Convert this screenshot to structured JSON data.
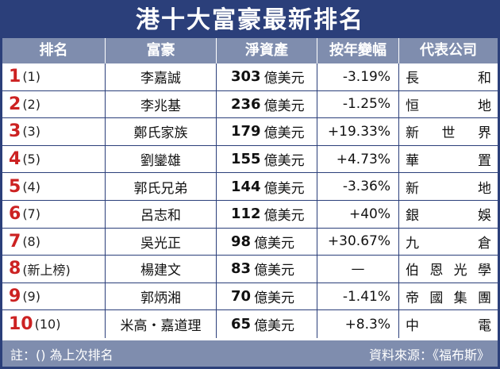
{
  "title": "港十大富豪最新排名",
  "columns": [
    "排名",
    "富豪",
    "淨資產",
    "按年變幅",
    "代表公司"
  ],
  "unit": "億美元",
  "rows": [
    {
      "rank": "1",
      "prev": "(1)",
      "name": "李嘉誠",
      "worth": "303",
      "change": "-3.19%",
      "company": "長和"
    },
    {
      "rank": "2",
      "prev": "(2)",
      "name": "李兆基",
      "worth": "236",
      "change": "-1.25%",
      "company": "恒地"
    },
    {
      "rank": "3",
      "prev": "(3)",
      "name": "鄭氏家族",
      "worth": "179",
      "change": "+19.33%",
      "company": "新世界"
    },
    {
      "rank": "4",
      "prev": "(5)",
      "name": "劉鑾雄",
      "worth": "155",
      "change": "+4.73%",
      "company": "華置"
    },
    {
      "rank": "5",
      "prev": "(4)",
      "name": "郭氏兄弟",
      "worth": "144",
      "change": "-3.36%",
      "company": "新地"
    },
    {
      "rank": "6",
      "prev": "(7)",
      "name": "呂志和",
      "worth": "112",
      "change": "+40%",
      "company": "銀娛"
    },
    {
      "rank": "7",
      "prev": "(8)",
      "name": "吳光正",
      "worth": "98",
      "change": "+30.67%",
      "company": "九倉"
    },
    {
      "rank": "8",
      "prev": "(新上榜)",
      "name": "楊建文",
      "worth": "83",
      "change": "—",
      "company": "伯恩光學"
    },
    {
      "rank": "9",
      "prev": "(9)",
      "name": "郭炳湘",
      "worth": "70",
      "change": "-1.41%",
      "company": "帝國集團"
    },
    {
      "rank": "10",
      "prev": "(10)",
      "name": "米高・嘉道理",
      "worth": "65",
      "change": "+8.3%",
      "company": "中電"
    }
  ],
  "footer": {
    "note": "註：() 為上次排名",
    "source": "資料來源：《福布斯》"
  }
}
